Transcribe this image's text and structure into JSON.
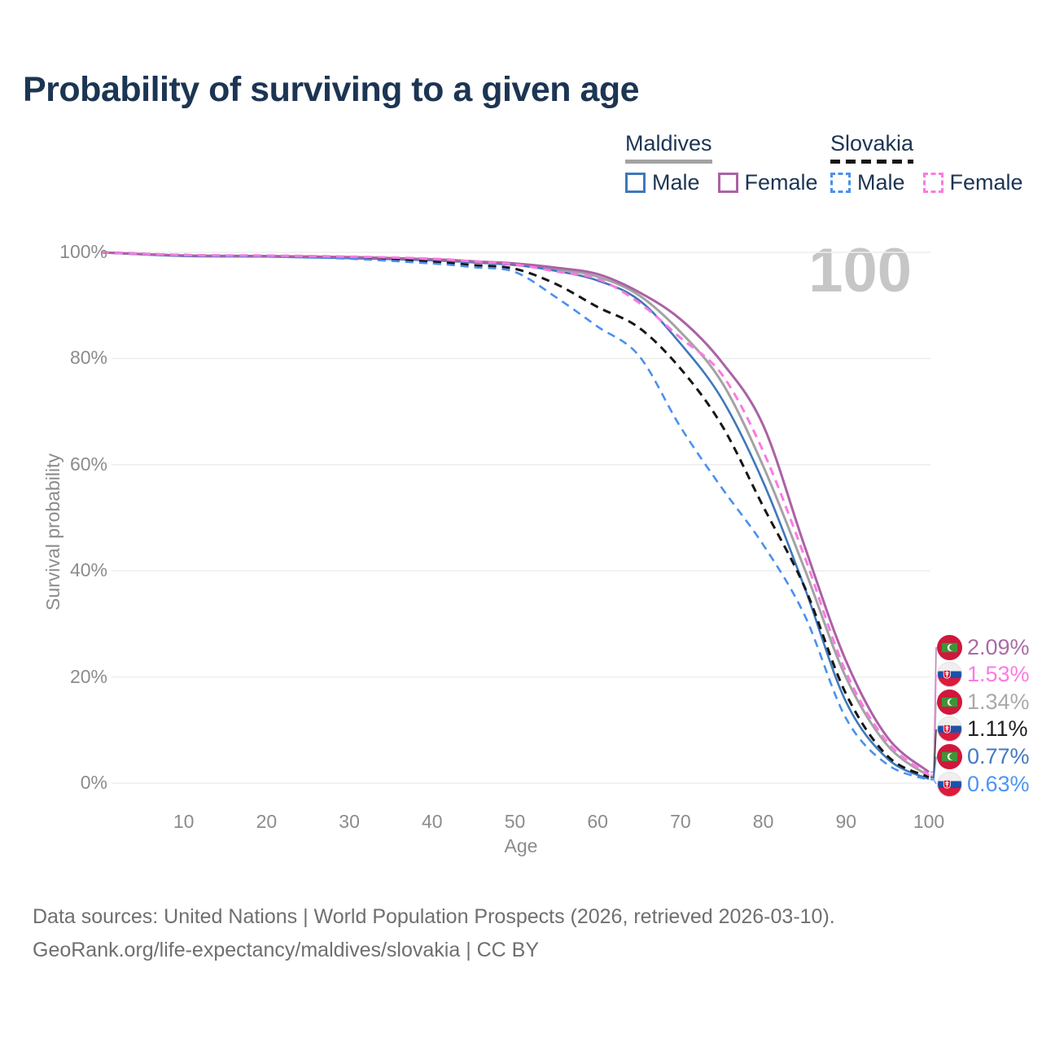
{
  "title": "Probability of surviving to a given age",
  "watermark_age": "100",
  "legend": {
    "groups": [
      {
        "country": "Maldives",
        "line_style": "solid",
        "items": [
          {
            "label": "Male",
            "series": "Maldives Male"
          },
          {
            "label": "Female",
            "series": "Maldives Female"
          }
        ]
      },
      {
        "country": "Slovakia",
        "line_style": "dashed",
        "items": [
          {
            "label": "Male",
            "series": "Slovakia Male"
          },
          {
            "label": "Female",
            "series": "Slovakia Female"
          }
        ]
      }
    ]
  },
  "end_labels": [
    {
      "country": "maldives",
      "series": "Maldives Female",
      "value": "2.09%",
      "color": "#a96ba6"
    },
    {
      "country": "slovakia",
      "series": "Slovakia Female",
      "value": "1.53%",
      "color": "#fb7ce0"
    },
    {
      "country": "maldives",
      "series": "Maldives Total",
      "value": "1.34%",
      "color": "#a9a9a9"
    },
    {
      "country": "slovakia",
      "series": "Slovakia Total",
      "value": "1.11%",
      "color": "#1f1f1f"
    },
    {
      "country": "maldives",
      "series": "Maldives Male",
      "value": "0.77%",
      "color": "#4478c4"
    },
    {
      "country": "slovakia",
      "series": "Slovakia Male",
      "value": "0.63%",
      "color": "#4e94f2"
    }
  ],
  "footer": {
    "line1": "Data sources: United Nations | World Population Prospects (2026, retrieved 2026-03-10).",
    "line2": "GeoRank.org/life-expectancy/maldives/slovakia | CC BY"
  },
  "colors": {
    "title_text": "#1c3553",
    "axis_text": "#8c8c8c",
    "gridline": "#ededed",
    "watermark": "#c6c6c6",
    "footer_text": "#6f6f6f"
  },
  "chart_data": {
    "type": "line",
    "title": "Probability of surviving to a given age",
    "xlabel": "Age",
    "ylabel": "Survival probability",
    "xlim": [
      0,
      100
    ],
    "ylim": [
      0,
      100
    ],
    "grid": "horizontal",
    "legend_position": "top-right",
    "x_ticks": [
      10,
      20,
      30,
      40,
      50,
      60,
      70,
      80,
      90,
      100
    ],
    "x_tick_labels": [
      "10",
      "20",
      "30",
      "40",
      "50",
      "60",
      "70",
      "80",
      "90",
      "100"
    ],
    "y_ticks": [
      0,
      20,
      40,
      60,
      80,
      100
    ],
    "y_tick_labels": [
      "0%",
      "20%",
      "40%",
      "60%",
      "80%",
      "100%"
    ],
    "ages": [
      0,
      10,
      20,
      30,
      40,
      45,
      50,
      55,
      60,
      65,
      70,
      75,
      80,
      85,
      90,
      95,
      100
    ],
    "series": [
      {
        "name": "Maldives Total",
        "country": "Maldives",
        "sex": "Total",
        "style": "solid",
        "color": "#a3a3a3",
        "width": 3,
        "values": [
          100,
          99.4,
          99.3,
          99.1,
          98.7,
          98.3,
          97.8,
          96.9,
          95.4,
          91.9,
          85.0,
          75.5,
          59.7,
          40.3,
          19.9,
          7.1,
          1.34
        ]
      },
      {
        "name": "Maldives Male",
        "country": "Maldives",
        "sex": "Male",
        "style": "solid",
        "color": "#3e78ba",
        "width": 2.6,
        "values": [
          100,
          99.3,
          99.2,
          98.9,
          98.5,
          98.1,
          97.6,
          96.5,
          94.7,
          91.0,
          82.8,
          72.4,
          56.7,
          36.8,
          15.3,
          4.6,
          0.77
        ]
      },
      {
        "name": "Maldives Female",
        "country": "Maldives",
        "sex": "Female",
        "style": "solid",
        "color": "#ab62a5",
        "width": 3,
        "values": [
          100,
          99.4,
          99.3,
          99.1,
          98.7,
          98.3,
          97.9,
          97.1,
          95.9,
          92.5,
          87.4,
          79.3,
          67.4,
          44.6,
          23.0,
          8.6,
          2.09
        ]
      },
      {
        "name": "Slovakia Total",
        "country": "Slovakia",
        "sex": "Total",
        "style": "dashed",
        "color": "#161616",
        "width": 3,
        "values": [
          100,
          99.5,
          99.3,
          99.0,
          98.2,
          97.6,
          96.9,
          94.0,
          89.7,
          85.8,
          78.1,
          67.4,
          52.1,
          36.9,
          16.8,
          5.1,
          1.11
        ]
      },
      {
        "name": "Slovakia Male",
        "country": "Slovakia",
        "sex": "Male",
        "style": "dashed",
        "color": "#4a90ee",
        "width": 2.6,
        "values": [
          100,
          99.4,
          99.2,
          98.8,
          97.9,
          97.2,
          96.3,
          91.5,
          86.0,
          80.5,
          67.1,
          55.6,
          44.9,
          31.6,
          12.2,
          3.5,
          0.63
        ]
      },
      {
        "name": "Slovakia Female",
        "country": "Slovakia",
        "sex": "Female",
        "style": "dashed",
        "color": "#fb7ae2",
        "width": 3,
        "values": [
          100,
          99.5,
          99.4,
          99.2,
          98.8,
          98.3,
          97.7,
          96.4,
          95.0,
          90.5,
          83.9,
          77.0,
          62.5,
          42.6,
          20.9,
          7.7,
          1.53
        ]
      }
    ],
    "end_values": {
      "Maldives Female": 2.09,
      "Slovakia Female": 1.53,
      "Maldives Total": 1.34,
      "Slovakia Total": 1.11,
      "Maldives Male": 0.77,
      "Slovakia Male": 0.63
    }
  }
}
